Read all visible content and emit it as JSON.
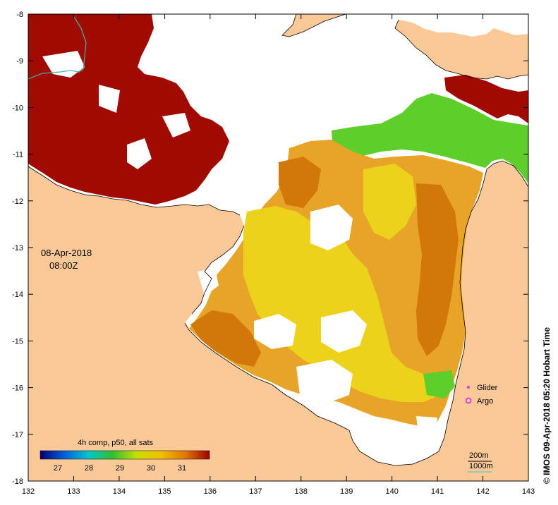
{
  "map": {
    "date_label": "08-Apr-2018",
    "time_label": "08:00Z",
    "credit": "© IMOS 09-Apr-2018 05:20 Hobart Time",
    "lon_ticks": [
      "132",
      "133",
      "134",
      "135",
      "136",
      "137",
      "138",
      "139",
      "140",
      "141",
      "142",
      "143"
    ],
    "lat_ticks": [
      "-8",
      "-9",
      "-10",
      "-11",
      "-12",
      "-13",
      "-14",
      "-15",
      "-16",
      "-17",
      "-18"
    ],
    "colors": {
      "land": "#fbc898",
      "no_data": "#ffffff",
      "sst_hot": "#a10a00",
      "sst_orange": "#d2780a",
      "sst_amber": "#e8a428",
      "sst_yellow": "#ecd21a",
      "sst_green": "#5ecf2a",
      "cyan_line": "#3fb6b0"
    },
    "legend": {
      "title": "4h comp, p50, all sats",
      "ticks": [
        "27",
        "28",
        "29",
        "30",
        "31"
      ],
      "gradient": [
        "#000070",
        "#0060e0",
        "#00c8c8",
        "#30c030",
        "#c8e000",
        "#f0c000",
        "#e07800",
        "#a00000"
      ]
    },
    "markers": {
      "glider": "Glider",
      "argo": "Argo",
      "glider_color": "#e040e0",
      "argo_color": "#e040e0"
    },
    "depth_legend": {
      "line1": "200m",
      "line2": "1000m",
      "line2_color": "#40c0c0"
    }
  }
}
